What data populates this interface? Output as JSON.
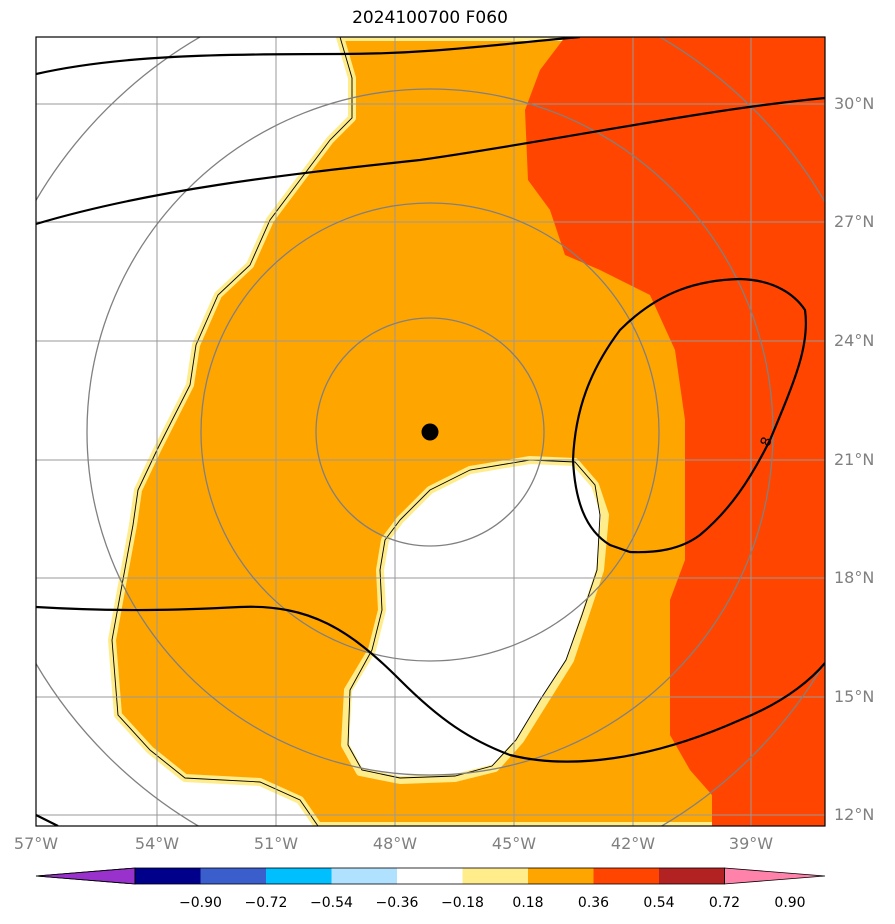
{
  "title": "2024100700 F060",
  "map": {
    "lon_labels": [
      "57°W",
      "54°W",
      "51°W",
      "48°W",
      "45°W",
      "42°W",
      "39°W"
    ],
    "lat_labels": [
      "30°N",
      "27°N",
      "24°N",
      "21°N",
      "18°N",
      "15°N",
      "12°N"
    ],
    "center_marker": "storm-center",
    "contour_label": "8"
  },
  "colorbar": {
    "ticks": [
      "−0.90",
      "−0.72",
      "−0.54",
      "−0.36",
      "−0.18",
      "0.18",
      "0.36",
      "0.54",
      "0.72",
      "0.90"
    ],
    "colors": [
      "#9932cc",
      "#00008b",
      "#3a5fcd",
      "#00bfff",
      "#b0e2ff",
      "#ffffff",
      "#ffec8b",
      "#ffa500",
      "#ff4500",
      "#b22222",
      "#ff82ab"
    ]
  },
  "colors": {
    "orange": "#ffa500",
    "red_orange": "#ff4500",
    "pale_yellow": "#ffec8b",
    "grid": "#808080"
  }
}
